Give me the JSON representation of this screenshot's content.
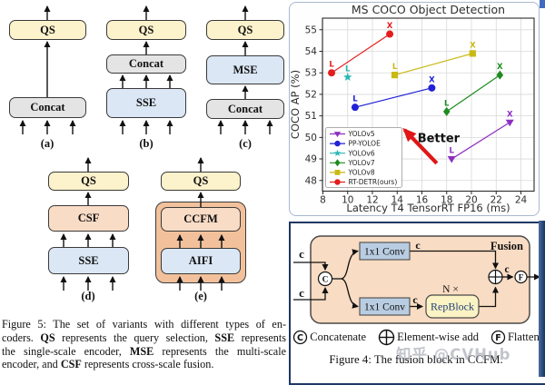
{
  "fig5": {
    "a": {
      "top": "QS",
      "bottom": "Concat"
    },
    "b": {
      "top": "QS",
      "mid": "Concat",
      "bottom": "SSE"
    },
    "c": {
      "top": "QS",
      "mid": "MSE",
      "bottom": "Concat"
    },
    "d": {
      "top": "QS",
      "mid": "CSF",
      "bottom": "SSE"
    },
    "e": {
      "top": "QS",
      "mid": "CCFM",
      "bottom": "AIFI"
    },
    "labels": {
      "a": "(a)",
      "b": "(b)",
      "c": "(c)",
      "d": "(d)",
      "e": "(e)"
    },
    "caption": [
      [
        {
          "t": "Figure 5:  The set of variants with different types of en-"
        }
      ],
      [
        {
          "t": "coders.  "
        },
        {
          "t": "QS"
        },
        {
          "t": " represents the query selection, "
        },
        {
          "t": "SSE"
        },
        {
          "t": " represents"
        }
      ],
      [
        {
          "t": "the single-scale encoder, "
        },
        {
          "t": "MSE"
        },
        {
          "t": " represents the multi-scale"
        }
      ],
      [
        {
          "t": "encoder, and "
        },
        {
          "t": "CSF"
        },
        {
          "t": " represents cross-scale fusion."
        }
      ]
    ]
  },
  "chart_data": {
    "type": "scatter",
    "title": "MS COCO Object Detection",
    "xlabel": "Latency T4 TensorRT FP16 (ms)",
    "ylabel": "COCO AP (%)",
    "xlim": [
      7.9,
      25.0
    ],
    "ylim": [
      47.5,
      55.5
    ],
    "xticks": [
      8,
      10,
      12,
      14,
      16,
      18,
      20,
      22,
      24
    ],
    "yticks": [
      48,
      49,
      50,
      51,
      52,
      53,
      54,
      55
    ],
    "grid": true,
    "legend_position": "lower left",
    "series": [
      {
        "name": "YOLOv5",
        "color": "#8d2fc0",
        "marker": "triangle-down",
        "points": [
          {
            "label": "L",
            "x": 18.4,
            "y": 49.0
          },
          {
            "label": "X",
            "x": 23.1,
            "y": 50.7
          }
        ]
      },
      {
        "name": "PP-YOLOE",
        "color": "#2121d6",
        "marker": "circle",
        "points": [
          {
            "label": "L",
            "x": 10.6,
            "y": 51.4
          },
          {
            "label": "X",
            "x": 16.8,
            "y": 52.3
          }
        ]
      },
      {
        "name": "YOLOv6",
        "color": "#29b8b4",
        "marker": "star",
        "points": [
          {
            "label": "L",
            "x": 10.0,
            "y": 52.8
          }
        ]
      },
      {
        "name": "YOLOv7",
        "color": "#1e8c1e",
        "marker": "diamond",
        "points": [
          {
            "label": "L",
            "x": 18.0,
            "y": 51.2
          },
          {
            "label": "X",
            "x": 22.3,
            "y": 52.9
          }
        ]
      },
      {
        "name": "YOLOv8",
        "color": "#c9b912",
        "marker": "square",
        "points": [
          {
            "label": "L",
            "x": 13.8,
            "y": 52.9
          },
          {
            "label": "X",
            "x": 20.1,
            "y": 53.9
          }
        ]
      },
      {
        "name": "RT-DETR(ours)",
        "color": "#e51d1d",
        "marker": "circle",
        "points": [
          {
            "label": "L",
            "x": 8.7,
            "y": 53.0
          },
          {
            "label": "X",
            "x": 13.4,
            "y": 54.8
          }
        ]
      }
    ],
    "annotation": {
      "text": "Better",
      "arrow_from": [
        17.2,
        48.8
      ],
      "arrow_to": [
        14.6,
        50.35
      ],
      "text_at": [
        17.35,
        49.95
      ]
    }
  },
  "fig4": {
    "fusion_label": "Fusion",
    "input_top": "c",
    "input_bottom": "c",
    "concat_symbol": "C",
    "conv_top": "1x1 Conv",
    "conv_bottom": "1x1 Conv",
    "c_after_top": "c",
    "c_before_rep": "c",
    "n_times": "N ×",
    "repblock": "RepBlock",
    "c_after_add": "c",
    "flatten_symbol": "F",
    "legend": [
      {
        "symbol": "C",
        "label": "Concatenate"
      },
      {
        "symbol": "+",
        "label": "Element-wise add"
      },
      {
        "symbol": "F",
        "label": "Flatten"
      }
    ],
    "caption": "Figure 4: The fusion block in CCFM."
  },
  "watermark": "知乎 @CVHub"
}
